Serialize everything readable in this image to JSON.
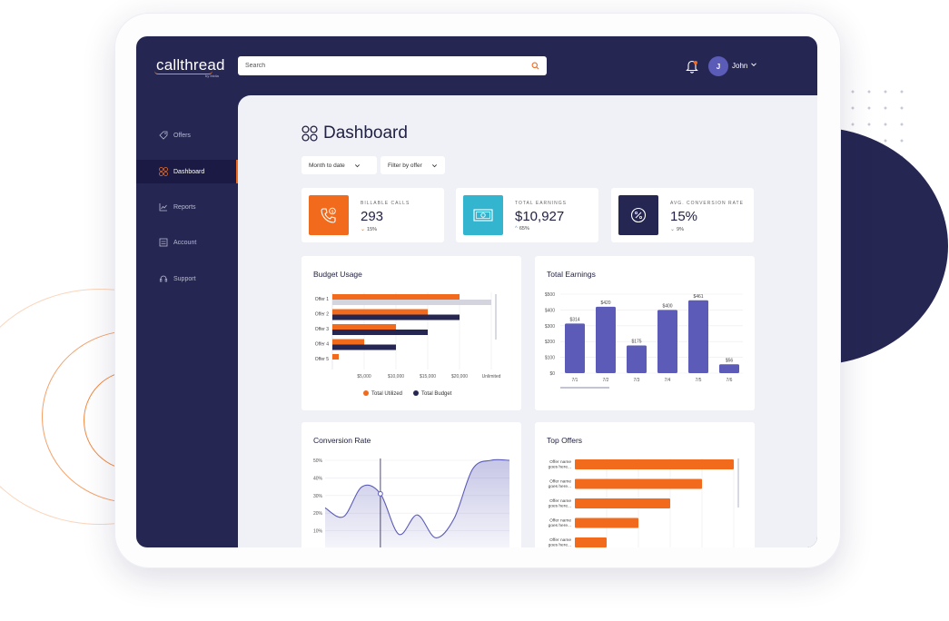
{
  "app": {
    "logo": "callthread",
    "logo_sub": "by Ibidia"
  },
  "header": {
    "search_placeholder": "Search",
    "user_initial": "J",
    "user_name": "John"
  },
  "sidebar": {
    "items": [
      {
        "label": "Offers",
        "icon": "tag-icon"
      },
      {
        "label": "Dashboard",
        "icon": "grid-icon",
        "active": true
      },
      {
        "label": "Reports",
        "icon": "chart-icon"
      },
      {
        "label": "Account",
        "icon": "sliders-icon"
      },
      {
        "label": "Support",
        "icon": "headset-icon"
      }
    ]
  },
  "page": {
    "title": "Dashboard"
  },
  "filters": {
    "date": "Month to date",
    "offer": "Filter by offer"
  },
  "kpis": [
    {
      "label": "BILLABLE CALLS",
      "value": "293",
      "delta": "15%",
      "direction": "down",
      "icon": "phone-dollar-icon",
      "color": "#f26b1d"
    },
    {
      "label": "TOTAL EARNINGS",
      "value": "$10,927",
      "delta": "65%",
      "direction": "up",
      "icon": "cash-icon",
      "color": "#34b5cf"
    },
    {
      "label": "AVG. CONVERSION RATE",
      "value": "15%",
      "delta": "9%",
      "direction": "down",
      "icon": "percent-icon",
      "color": "#262653"
    }
  ],
  "colors": {
    "orange": "#f26b1d",
    "navy": "#262653",
    "purple": "#5c5cb8",
    "grey": "#d3d4de"
  },
  "chart_data": [
    {
      "type": "bar",
      "orientation": "horizontal",
      "title": "Budget Usage",
      "categories": [
        "Offer 1",
        "Offer 2",
        "Offer 3",
        "Offer 4",
        "Offer 5"
      ],
      "x_ticks": [
        "$5,000",
        "$10,000",
        "$15,000",
        "$20,000",
        "Unlimited"
      ],
      "xlim": [
        0,
        25000
      ],
      "series": [
        {
          "name": "Total Utilized",
          "values": [
            20000,
            15000,
            10000,
            5000,
            1000
          ]
        },
        {
          "name": "Total Budget",
          "values": [
            25000,
            20000,
            15000,
            10000,
            0
          ]
        }
      ],
      "notes_budget_unlimited": [
        true,
        false,
        false,
        false,
        false
      ]
    },
    {
      "type": "bar",
      "title": "Total Earnings",
      "categories": [
        "7/1",
        "7/2",
        "7/3",
        "7/4",
        "7/5",
        "7/6"
      ],
      "values": [
        314,
        420,
        175,
        400,
        461,
        56
      ],
      "value_labels": [
        "$314",
        "$420",
        "$175",
        "$400",
        "$461",
        "$56"
      ],
      "y_ticks": [
        "$0",
        "$100",
        "$200",
        "$300",
        "$400",
        "$500"
      ],
      "ylim": [
        0,
        500
      ]
    },
    {
      "type": "area",
      "title": "Conversion Rate",
      "y_ticks": [
        "10%",
        "20%",
        "30%",
        "40%",
        "50%"
      ],
      "ylim": [
        0,
        50
      ],
      "x": [
        0,
        1,
        2,
        3,
        4,
        5,
        6,
        7,
        8,
        9,
        10
      ],
      "values": [
        23,
        18,
        35,
        31,
        8,
        19,
        6,
        17,
        45,
        50,
        50
      ],
      "highlight_index": 3
    },
    {
      "type": "bar",
      "orientation": "horizontal",
      "title": "Top Offers",
      "categories": [
        "Offer name goes here...",
        "Offer name goes here...",
        "Offer name goes here...",
        "Offer name goes here...",
        "Offer name goes here..."
      ],
      "values": [
        100,
        80,
        60,
        40,
        20
      ],
      "xlim": [
        0,
        100
      ]
    }
  ]
}
